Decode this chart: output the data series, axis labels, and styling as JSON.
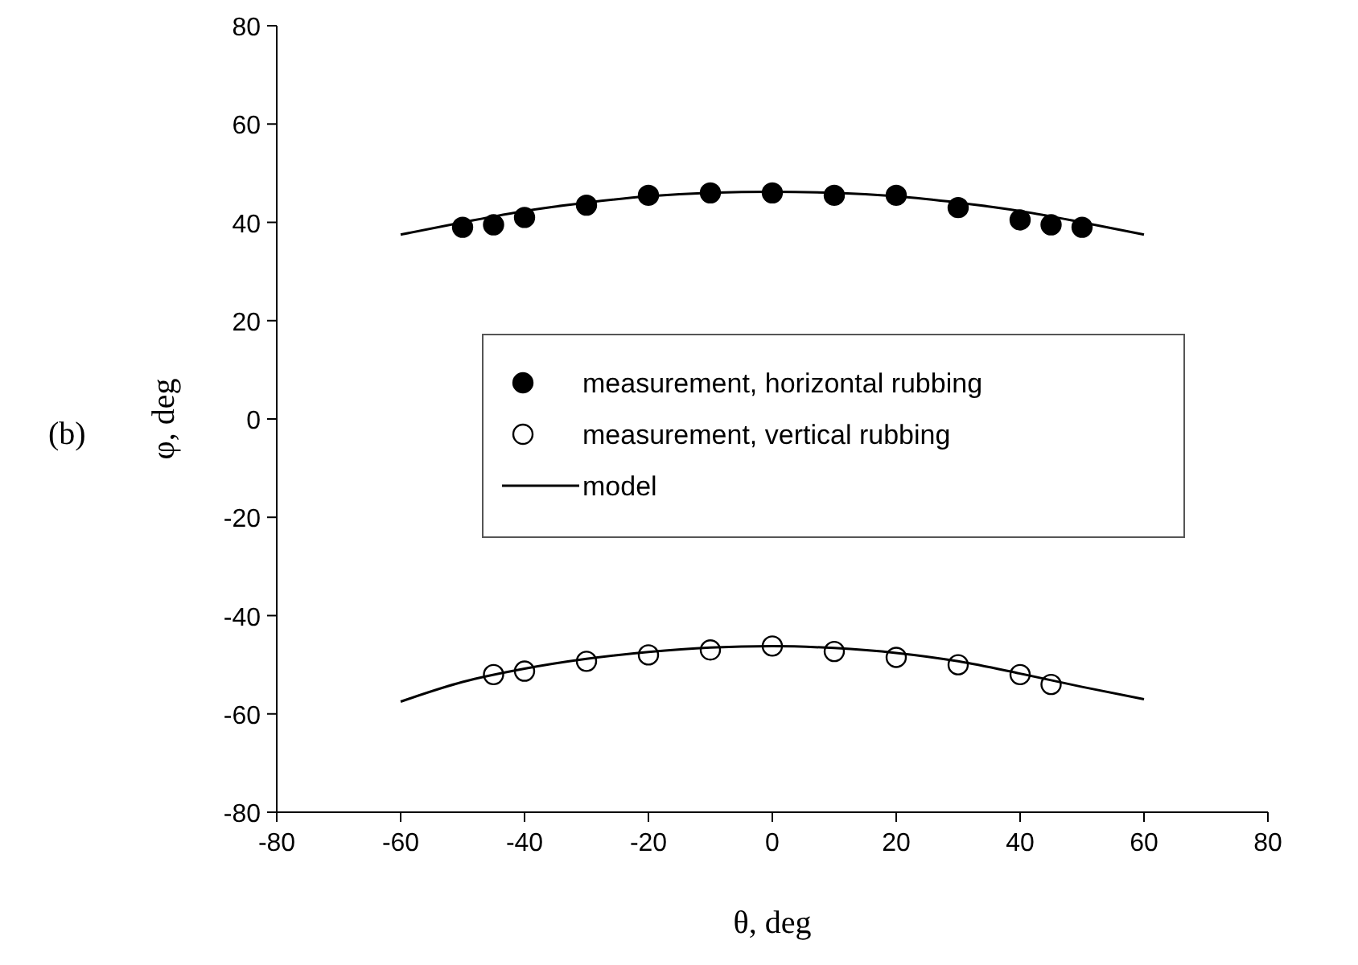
{
  "chart_data": {
    "type": "scatter",
    "xlabel": "θ, deg",
    "ylabel": "φ, deg",
    "annotations": [
      "(b)"
    ],
    "xlim": [
      -80,
      80
    ],
    "xticks": [
      -80,
      -60,
      -40,
      -20,
      0,
      20,
      40,
      60,
      80
    ],
    "ylim": [
      -80,
      80
    ],
    "yticks": [
      -80,
      -60,
      -40,
      -20,
      0,
      20,
      40,
      60,
      80
    ],
    "legend": "right",
    "grid": false,
    "series": [
      {
        "name": "measurement, horizontal rubbing",
        "marker": "circle",
        "color": "#000000",
        "x": [
          -50,
          -45,
          -40,
          -30,
          -20,
          -10,
          0,
          10,
          20,
          30,
          40,
          45,
          50
        ],
        "values": [
          39,
          39.5,
          41,
          43.5,
          45.5,
          46,
          46,
          45.5,
          45.5,
          43,
          40.5,
          39.5,
          39
        ]
      },
      {
        "name": "measurement, vertical rubbing",
        "marker": "circle",
        "color": "#ffffff",
        "x": [
          -45,
          -40,
          -30,
          -20,
          -10,
          0,
          10,
          20,
          30,
          40,
          45
        ],
        "values": [
          -52,
          -51.3,
          -49.3,
          -48,
          -47,
          -46.2,
          -47.3,
          -48.5,
          -50,
          -52,
          -54
        ]
      },
      {
        "name": "model",
        "type": "line",
        "marker": "none",
        "color": "#000000",
        "x": [
          -60,
          -50,
          -40,
          -30,
          -20,
          -10,
          0,
          10,
          20,
          30,
          40,
          50,
          60
        ],
        "values": [
          37.5,
          40,
          42.3,
          44,
          45.3,
          46,
          46.2,
          46,
          45.3,
          44,
          42.3,
          40,
          37.5
        ]
      },
      {
        "type": "line",
        "marker": "none",
        "color": "#000000",
        "x": [
          -60,
          -50,
          -40,
          -30,
          -20,
          -10,
          0,
          10,
          20,
          30,
          40,
          50,
          60
        ],
        "values": [
          -57.5,
          -53.5,
          -50.8,
          -48.8,
          -47.4,
          -46.5,
          -46.2,
          -46.6,
          -47.6,
          -49.3,
          -51.8,
          -54.5,
          -57
        ]
      }
    ]
  }
}
